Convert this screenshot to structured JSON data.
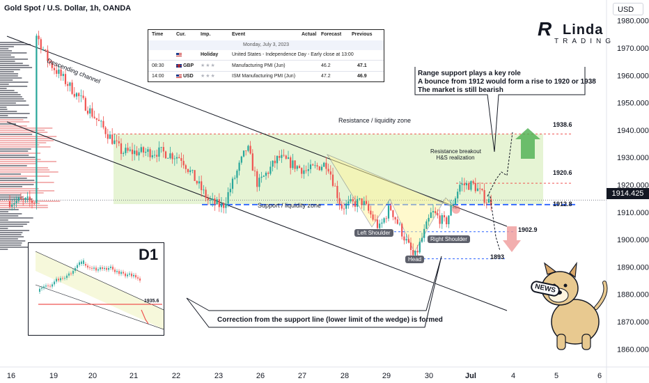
{
  "header": {
    "symbol_title": "Gold Spot / U.S. Dollar, 1h, OANDA",
    "currency": "USD"
  },
  "price_axis": {
    "current_price": "1914.425"
  },
  "logo": {
    "mark": "R",
    "name": "Linda",
    "sub": "TRADING"
  },
  "calendar": {
    "columns": [
      "Time",
      "Cur.",
      "Imp.",
      "Event",
      "Actual",
      "Forecast",
      "Previous"
    ],
    "date": "Monday, July 3, 2023",
    "rows": [
      {
        "time": "",
        "cur": "",
        "imp": "Holiday",
        "event": "United States - Independence Day - Early close at 13:00",
        "actual": "",
        "forecast": "",
        "previous": ""
      },
      {
        "time": "08:30",
        "cur": "GBP",
        "imp": "",
        "event": "Manufacturing PMI (Jun)",
        "actual": "",
        "forecast": "46.2",
        "previous": "47.1"
      },
      {
        "time": "14:00",
        "cur": "USD",
        "imp": "",
        "event": "ISM Manufacturing PMI (Jun)",
        "actual": "",
        "forecast": "47.2",
        "previous": "46.9"
      }
    ]
  },
  "annotations": {
    "channel": "Descending channel",
    "resistance_zone": "Resistance / liquidity zone",
    "support_zone": "Support / liquidity zone",
    "breakout_line1": "Resistance breakout",
    "breakout_line2": "H&S realization",
    "left_shoulder": "Left Shoulder",
    "right_shoulder": "Right Shoulder",
    "head": "Head",
    "note_line1": "Range support plays a key role",
    "note_line2": "A bounce from 1912 would form a rise to 1920 or 1938",
    "note_line3": "The market is still bearish",
    "correction": "Correction from the support line (lower limit of the wedge) is formed",
    "news": "NEWS"
  },
  "inset": {
    "title": "D1",
    "level": "1935.6"
  },
  "colors": {
    "up": "#26a69a",
    "down": "#ef5350",
    "zone": "#c8e6a0",
    "support": "#2962ff",
    "resistance": "#ef5350"
  },
  "chart_data": {
    "type": "candlestick",
    "title": "Gold Spot / U.S. Dollar, 1h, OANDA",
    "ylim": [
      1855,
      1985
    ],
    "y_ticks": [
      1860,
      1870,
      1880,
      1890,
      1900,
      1910,
      1920,
      1930,
      1940,
      1950,
      1960,
      1970,
      1980
    ],
    "x_ticks": [
      "16",
      "19",
      "20",
      "21",
      "22",
      "23",
      "26",
      "27",
      "28",
      "29",
      "30",
      "Jul",
      "4",
      "5",
      "6"
    ],
    "levels": [
      {
        "label": "1938.6",
        "value": 1938.6,
        "style": "resistance"
      },
      {
        "label": "1920.6",
        "value": 1920.6,
        "style": "resistance"
      },
      {
        "label": "1912.8",
        "value": 1912.8,
        "style": "support"
      },
      {
        "label": "1902.9",
        "value": 1902.9,
        "style": "support"
      },
      {
        "label": "1893",
        "value": 1893,
        "style": "support"
      }
    ],
    "price_path_approx": [
      {
        "x": "19",
        "close": 1965
      },
      {
        "x": "20",
        "close": 1955
      },
      {
        "x": "21",
        "close": 1932
      },
      {
        "x": "22",
        "close": 1930
      },
      {
        "x": "23",
        "close": 1914
      },
      {
        "x": "26",
        "close": 1924
      },
      {
        "x": "27",
        "close": 1926
      },
      {
        "x": "28",
        "close": 1912
      },
      {
        "x": "29",
        "close": 1906
      },
      {
        "x": "30",
        "close": 1910
      },
      {
        "x": "Jul",
        "close": 1914
      }
    ]
  }
}
